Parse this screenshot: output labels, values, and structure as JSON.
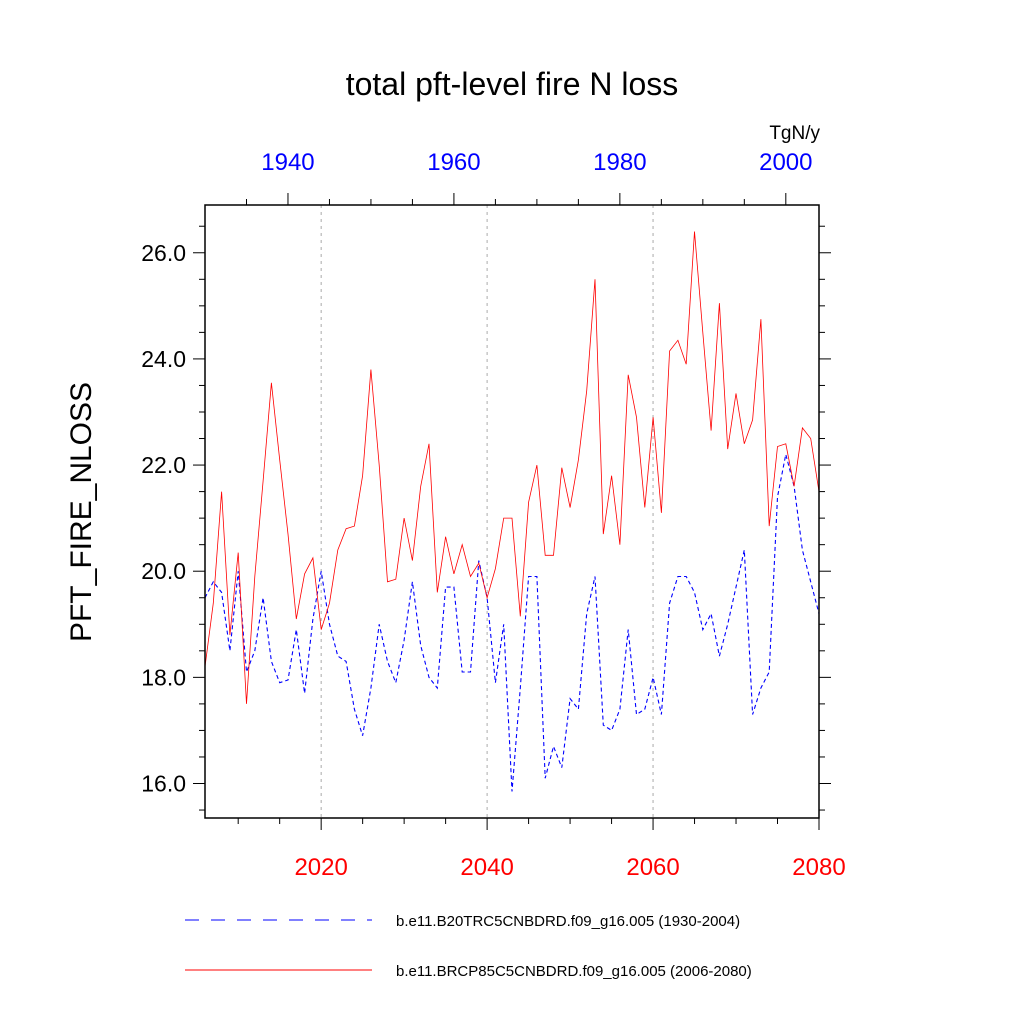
{
  "chart_data": {
    "type": "line",
    "title": "total pft-level fire N loss",
    "units": "TgN/y",
    "ylabel": "PFT_FIRE_NLOSS",
    "ylim": [
      15.35,
      26.9
    ],
    "yticks": [
      16.0,
      18.0,
      20.0,
      22.0,
      24.0,
      26.0
    ],
    "ytick_labels": [
      "16.0",
      "18.0",
      "20.0",
      "22.0",
      "24.0",
      "26.0"
    ],
    "x_bottom": {
      "range": [
        2006,
        2080
      ],
      "ticks": [
        2020,
        2040,
        2060,
        2080
      ],
      "tick_labels": [
        "2020",
        "2040",
        "2060",
        "2080"
      ],
      "color": "#ff0000"
    },
    "x_top": {
      "range": [
        1930,
        2004
      ],
      "ticks": [
        1940,
        1960,
        1980,
        2000
      ],
      "tick_labels": [
        "1940",
        "1960",
        "1980",
        "2000"
      ],
      "color": "#0000ff"
    },
    "vertical_gridlines": [
      2020,
      2040,
      2060
    ],
    "series": [
      {
        "name": "b.e11.B20TRC5CNBDRD.f09_g16.005 (1930-2004)",
        "axis": "top",
        "color": "#0000ff",
        "style": "dashed",
        "start_year": 1930,
        "values": [
          19.5,
          19.8,
          19.6,
          18.5,
          20.0,
          18.1,
          18.5,
          19.5,
          18.3,
          17.9,
          17.95,
          18.9,
          17.7,
          19.1,
          20.0,
          19.0,
          18.4,
          18.3,
          17.4,
          16.9,
          17.8,
          19.0,
          18.3,
          17.9,
          18.7,
          19.8,
          18.6,
          18.0,
          17.8,
          19.7,
          19.7,
          18.1,
          18.1,
          20.2,
          19.5,
          17.9,
          19.0,
          15.85,
          17.8,
          19.9,
          19.9,
          16.1,
          16.7,
          16.3,
          17.6,
          17.4,
          19.2,
          19.9,
          17.1,
          17.0,
          17.4,
          18.9,
          17.3,
          17.4,
          18.0,
          17.3,
          19.4,
          19.9,
          19.9,
          19.6,
          18.9,
          19.2,
          18.4,
          19.0,
          19.7,
          20.4,
          17.3,
          17.8,
          18.1,
          21.4,
          22.2,
          21.6,
          20.4,
          19.8,
          19.2
        ]
      },
      {
        "name": "b.e11.BRCP85C5CNBDRD.f09_g16.005 (2006-2080)",
        "axis": "bottom",
        "color": "#ff0000",
        "style": "solid",
        "start_year": 2006,
        "values": [
          18.2,
          19.4,
          21.5,
          18.8,
          20.35,
          17.5,
          19.9,
          21.7,
          23.55,
          22.1,
          20.7,
          19.1,
          19.95,
          20.25,
          18.9,
          19.4,
          20.4,
          20.8,
          20.85,
          21.8,
          23.8,
          22.0,
          19.8,
          19.85,
          21.0,
          20.2,
          21.6,
          22.4,
          19.6,
          20.65,
          19.95,
          20.5,
          19.9,
          20.15,
          19.5,
          20.05,
          21.0,
          21.0,
          19.15,
          21.3,
          22.0,
          20.3,
          20.3,
          21.95,
          21.2,
          22.1,
          23.4,
          25.5,
          20.7,
          21.8,
          20.5,
          23.7,
          22.9,
          21.2,
          22.9,
          21.1,
          24.15,
          24.35,
          23.9,
          26.4,
          24.5,
          22.65,
          25.05,
          22.3,
          23.35,
          22.4,
          22.85,
          24.75,
          20.85,
          22.35,
          22.4,
          21.6,
          22.7,
          22.5,
          21.5
        ]
      }
    ]
  }
}
